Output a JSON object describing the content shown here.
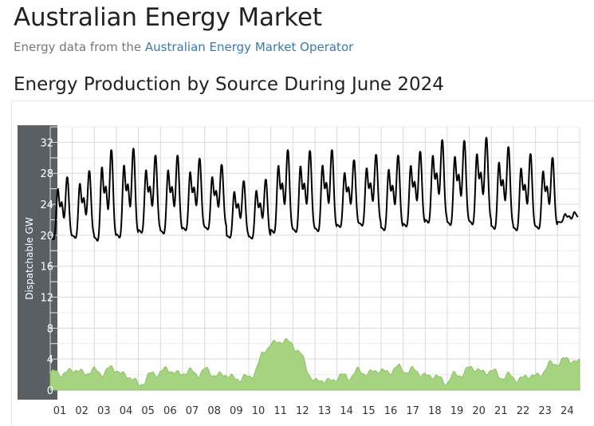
{
  "header": {
    "title": "Australian Energy Market",
    "subtitle_prefix": "Energy data from the ",
    "subtitle_link": "Australian Energy Market Operator"
  },
  "section": {
    "title": "Energy Production by Source During June 2024"
  },
  "colors": {
    "dispatchable_line": "#000000",
    "renewable_fill": "#a6d37f",
    "renewable_stroke": "#7fb85a",
    "axis_panel": "#5a5f63",
    "grid": "#d9d9d9",
    "grid_minor": "#ececec"
  },
  "chart_data": {
    "type": "line",
    "xlabel": "",
    "ylabel": "Dispatchable GW",
    "ylim": [
      0,
      34
    ],
    "yticks": [
      0,
      4,
      8,
      12,
      16,
      20,
      24,
      28,
      32
    ],
    "x_tick_labels": [
      "01",
      "02",
      "03",
      "04",
      "05",
      "06",
      "07",
      "08",
      "09",
      "10",
      "11",
      "12",
      "13",
      "14",
      "15",
      "16",
      "17",
      "18",
      "19",
      "20",
      "21",
      "22",
      "23",
      "24"
    ],
    "grid": true,
    "series": [
      {
        "type": "line",
        "days": [
          1,
          2,
          3,
          4,
          5,
          6,
          7,
          8,
          9,
          10,
          11,
          12,
          13,
          14,
          15,
          16,
          17,
          18,
          19,
          20,
          21,
          22,
          23,
          24
        ],
        "daily_peak_GW": [
          27.5,
          28.3,
          31.0,
          31.2,
          30.3,
          30.3,
          29.9,
          29.1,
          27.0,
          27.2,
          31.0,
          30.9,
          31.0,
          29.7,
          30.4,
          30.3,
          30.8,
          32.3,
          32.2,
          32.6,
          31.4,
          30.5,
          30.0,
          23.0
        ],
        "daily_trough_GW": [
          19.6,
          19.8,
          19.5,
          19.9,
          20.5,
          20.4,
          20.8,
          20.9,
          19.8,
          19.7,
          20.5,
          20.6,
          20.7,
          21.2,
          21.4,
          20.8,
          21.3,
          21.8,
          21.5,
          21.6,
          21.0,
          20.8,
          21.0,
          21.7
        ]
      },
      {
        "type": "area",
        "days": [
          1,
          2,
          3,
          4,
          5,
          6,
          7,
          8,
          9,
          10,
          11,
          12,
          13,
          14,
          15,
          16,
          17,
          18,
          19,
          20,
          21,
          22,
          23,
          24
        ],
        "daily_avg_GW": [
          2.0,
          2.5,
          2.3,
          2.7,
          0.8,
          2.6,
          2.2,
          2.4,
          1.8,
          1.4,
          6.2,
          6.2,
          1.0,
          1.5,
          2.3,
          2.4,
          2.8,
          2.0,
          1.2,
          2.8,
          2.3,
          1.5,
          1.8,
          3.8
        ]
      }
    ]
  }
}
